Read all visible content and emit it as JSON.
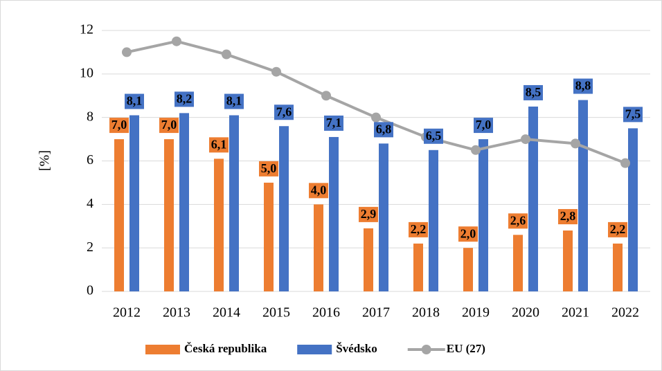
{
  "chart_data": {
    "type": "bar",
    "y_label": "[%]",
    "categories": [
      "2012",
      "2013",
      "2014",
      "2015",
      "2016",
      "2017",
      "2018",
      "2019",
      "2020",
      "2021",
      "2022"
    ],
    "series": [
      {
        "name": "Česká republika",
        "type": "bar",
        "color": "#ed7d31",
        "values": [
          7.0,
          7.0,
          6.1,
          5.0,
          4.0,
          2.9,
          2.2,
          2.0,
          2.6,
          2.8,
          2.2
        ],
        "value_labels": [
          "7,0",
          "7,0",
          "6,1",
          "5,0",
          "4,0",
          "2,9",
          "2,2",
          "2,0",
          "2,6",
          "2,8",
          "2,2"
        ]
      },
      {
        "name": "Švédsko",
        "type": "bar",
        "color": "#4472c4",
        "values": [
          8.1,
          8.2,
          8.1,
          7.6,
          7.1,
          6.8,
          6.5,
          7.0,
          8.5,
          8.8,
          7.5
        ],
        "value_labels": [
          "8,1",
          "8,2",
          "8,1",
          "7,6",
          "7,1",
          "6,8",
          "6,5",
          "7,0",
          "8,5",
          "8,8",
          "7,5"
        ]
      },
      {
        "name": "EU (27)",
        "type": "line",
        "color": "#a5a5a5",
        "values": [
          11.0,
          11.5,
          10.9,
          10.1,
          9.0,
          8.0,
          7.1,
          6.5,
          7.0,
          6.8,
          5.9
        ]
      }
    ],
    "ylim": [
      0,
      12
    ],
    "yticks": [
      0,
      2,
      4,
      6,
      8,
      10,
      12
    ],
    "grid": true,
    "legend": "bottom"
  }
}
